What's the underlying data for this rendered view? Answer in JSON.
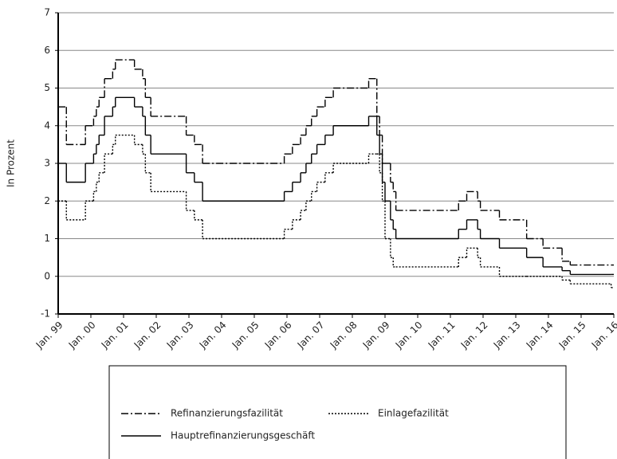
{
  "chart_data": {
    "type": "step-line",
    "ylabel": "In Prozent",
    "xlim": [
      1999,
      2016
    ],
    "xticks": [
      {
        "value": 1999,
        "label": "Jan. 99"
      },
      {
        "value": 2000,
        "label": "Jan. 00"
      },
      {
        "value": 2001,
        "label": "Jan. 01"
      },
      {
        "value": 2002,
        "label": "Jan. 02"
      },
      {
        "value": 2003,
        "label": "Jan. 03"
      },
      {
        "value": 2004,
        "label": "Jan. 04"
      },
      {
        "value": 2005,
        "label": "Jan. 05"
      },
      {
        "value": 2006,
        "label": "Jan. 06"
      },
      {
        "value": 2007,
        "label": "Jan. 07"
      },
      {
        "value": 2008,
        "label": "Jan. 08"
      },
      {
        "value": 2009,
        "label": "Jan. 09"
      },
      {
        "value": 2010,
        "label": "Jan. 10"
      },
      {
        "value": 2011,
        "label": "Jan. 11"
      },
      {
        "value": 2012,
        "label": "Jan. 12"
      },
      {
        "value": 2013,
        "label": "Jan. 13"
      },
      {
        "value": 2014,
        "label": "Jan. 14"
      },
      {
        "value": 2015,
        "label": "Jan. 15"
      },
      {
        "value": 2016,
        "label": "Jan. 16"
      }
    ],
    "ylim": [
      -1,
      7
    ],
    "yticks": [
      -1,
      0,
      1,
      2,
      3,
      4,
      5,
      6,
      7
    ],
    "grid": true,
    "legend": "bottom",
    "x": [
      1999.0,
      1999.25,
      1999.833,
      2000.083,
      2000.167,
      2000.25,
      2000.417,
      2000.667,
      2000.75,
      2001.333,
      2001.583,
      2001.667,
      2001.833,
      2002.917,
      2003.167,
      2003.417,
      2005.917,
      2006.167,
      2006.417,
      2006.583,
      2006.75,
      2006.917,
      2007.167,
      2007.417,
      2008.5,
      2008.75,
      2008.833,
      2008.917,
      2009.0,
      2009.167,
      2009.25,
      2009.333,
      2011.25,
      2011.5,
      2011.833,
      2011.917,
      2012.5,
      2013.333,
      2013.833,
      2014.417,
      2014.667,
      2015.917
    ],
    "series": [
      {
        "name": "Refinanzierungsfazilität",
        "color": "#000000",
        "dash": "dashdot",
        "values": [
          4.5,
          3.5,
          4.0,
          4.25,
          4.5,
          4.75,
          5.25,
          5.5,
          5.75,
          5.5,
          5.25,
          4.75,
          4.25,
          3.75,
          3.5,
          3.0,
          3.25,
          3.5,
          3.75,
          4.0,
          4.25,
          4.5,
          4.75,
          5.0,
          5.25,
          4.25,
          3.75,
          3.0,
          3.0,
          2.5,
          2.25,
          1.75,
          2.0,
          2.25,
          2.0,
          1.75,
          1.5,
          1.0,
          0.75,
          0.4,
          0.3,
          0.3
        ]
      },
      {
        "name": "Einlagefazilität",
        "color": "#000000",
        "dash": "dotted",
        "values": [
          2.0,
          1.5,
          2.0,
          2.25,
          2.5,
          2.75,
          3.25,
          3.5,
          3.75,
          3.5,
          3.25,
          2.75,
          2.25,
          1.75,
          1.5,
          1.0,
          1.25,
          1.5,
          1.75,
          2.0,
          2.25,
          2.5,
          2.75,
          3.0,
          3.25,
          3.25,
          2.75,
          2.0,
          1.0,
          0.5,
          0.25,
          0.25,
          0.5,
          0.75,
          0.5,
          0.25,
          0.0,
          0.0,
          0.0,
          -0.1,
          -0.2,
          -0.3
        ]
      },
      {
        "name": "Hauptrefinanzierungsgeschäft",
        "color": "#000000",
        "dash": "solid",
        "values": [
          3.0,
          2.5,
          3.0,
          3.25,
          3.5,
          3.75,
          4.25,
          4.5,
          4.75,
          4.5,
          4.25,
          3.75,
          3.25,
          2.75,
          2.5,
          2.0,
          2.25,
          2.5,
          2.75,
          3.0,
          3.25,
          3.5,
          3.75,
          4.0,
          4.25,
          3.75,
          3.25,
          2.5,
          2.0,
          1.5,
          1.25,
          1.0,
          1.25,
          1.5,
          1.25,
          1.0,
          0.75,
          0.5,
          0.25,
          0.15,
          0.05,
          0.05
        ]
      }
    ]
  }
}
